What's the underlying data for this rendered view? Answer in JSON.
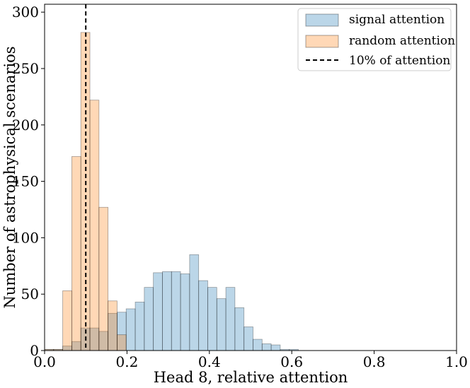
{
  "chart_data": {
    "type": "bar",
    "title": "",
    "xlabel": "Head 8, relative attention",
    "ylabel": "Number of astrophysical scenarios",
    "xlim": [
      0.0,
      1.0
    ],
    "ylim": [
      0,
      307
    ],
    "xticks": [
      0.0,
      0.2,
      0.4,
      0.6,
      0.8,
      1.0
    ],
    "xtick_labels": [
      "0.0",
      "0.2",
      "0.4",
      "0.6",
      "0.8",
      "1.0"
    ],
    "yticks": [
      0,
      50,
      100,
      150,
      200,
      250,
      300
    ],
    "ytick_labels": [
      "0",
      "50",
      "100",
      "150",
      "200",
      "250",
      "300"
    ],
    "bin_width": 0.022,
    "series": [
      {
        "name": "signal attention",
        "color": "#1f77b4",
        "alpha": 0.3,
        "bin_starts": [
          0.0,
          0.022,
          0.044,
          0.066,
          0.088,
          0.11,
          0.132,
          0.154,
          0.176,
          0.198,
          0.22,
          0.242,
          0.264,
          0.286,
          0.308,
          0.33,
          0.352,
          0.374,
          0.396,
          0.418,
          0.44,
          0.462,
          0.484,
          0.506,
          0.528,
          0.55,
          0.572,
          0.594
        ],
        "values": [
          1,
          1,
          4,
          8,
          20,
          20,
          17,
          33,
          34,
          37,
          43,
          56,
          69,
          70,
          70,
          68,
          85,
          62,
          56,
          46,
          56,
          38,
          21,
          10,
          6,
          5,
          1,
          1
        ]
      },
      {
        "name": "random attention",
        "color": "#ff7f0e",
        "alpha": 0.3,
        "bin_starts": [
          0.0,
          0.022,
          0.044,
          0.066,
          0.088,
          0.11,
          0.132,
          0.154,
          0.176
        ],
        "values": [
          1,
          1,
          53,
          172,
          282,
          222,
          127,
          44,
          14
        ]
      }
    ],
    "vline": {
      "x": 0.1,
      "label": "10% of attention",
      "style": "dashed",
      "color": "#000000"
    },
    "legend": {
      "position": "top-right",
      "entries": [
        "signal attention",
        "random attention",
        "10% of attention"
      ]
    }
  }
}
